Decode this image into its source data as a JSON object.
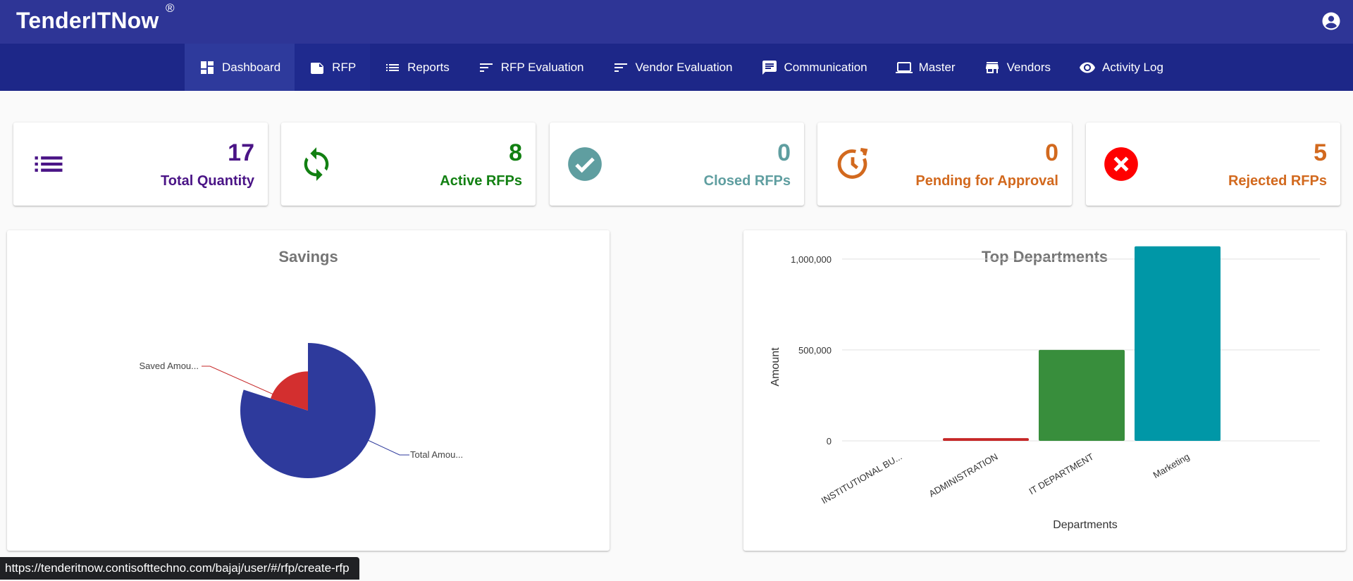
{
  "header": {
    "brand": "TenderITNow",
    "brand_mark": "®",
    "user_icon": "account-circle-icon"
  },
  "nav": {
    "items": [
      {
        "label": "Dashboard",
        "icon": "dashboard-icon"
      },
      {
        "label": "RFP",
        "icon": "note-icon"
      },
      {
        "label": "Reports",
        "icon": "list-icon"
      },
      {
        "label": "RFP Evaluation",
        "icon": "sort-icon"
      },
      {
        "label": "Vendor Evaluation",
        "icon": "sort-icon"
      },
      {
        "label": "Communication",
        "icon": "chat-icon"
      },
      {
        "label": "Master",
        "icon": "laptop-icon"
      },
      {
        "label": "Vendors",
        "icon": "store-icon"
      },
      {
        "label": "Activity Log",
        "icon": "eye-icon"
      }
    ]
  },
  "stats": [
    {
      "value": "17",
      "label": "Total Quantity",
      "color": "#4a1486",
      "icon": "list-icon"
    },
    {
      "value": "8",
      "label": "Active RFPs",
      "color": "#128012",
      "icon": "sync-icon"
    },
    {
      "value": "0",
      "label": "Closed RFPs",
      "color": "#5f9ea0",
      "icon": "check-circle-icon"
    },
    {
      "value": "0",
      "label": "Pending for Approval",
      "color": "#d2691e",
      "icon": "clock-alert-icon"
    },
    {
      "value": "5",
      "label": "Rejected RFPs",
      "color": "#d2691e",
      "icon": "cancel-icon",
      "icon_color": "#ff0000"
    }
  ],
  "savings": {
    "title": "Savings",
    "chart_data": {
      "type": "pie",
      "title": "Savings",
      "labels": [
        "Saved Amou...",
        "Total Amou..."
      ],
      "values": [
        0.2,
        0.8
      ],
      "note_unused_start": "",
      "colors": [
        "#d32f2f",
        "#2e3a9c"
      ]
    }
  },
  "departments": {
    "title": "Top Departments",
    "chart_data": {
      "type": "bar",
      "title": "Top Departments",
      "categories": [
        "INSTITUTIONAL BU...",
        "ADMINISTRATION",
        "IT DEPARTMENT",
        "Marketing"
      ],
      "values": [
        0,
        15000,
        500000,
        1070000
      ],
      "colors": [
        "#2e3a9c",
        "#c62828",
        "#388e3c",
        "#0097a7"
      ],
      "xlabel": "Departments",
      "ylabel": "Amount",
      "yticks": [
        "0",
        "500,000",
        "1,000,000"
      ],
      "ytick_values": [
        0,
        500000,
        1000000
      ],
      "ylim": [
        0,
        1100000
      ],
      "grid": true
    }
  },
  "status_bar": {
    "url": "https://tenderitnow.contisofttechno.com/bajaj/user/#/rfp/create-rfp"
  }
}
